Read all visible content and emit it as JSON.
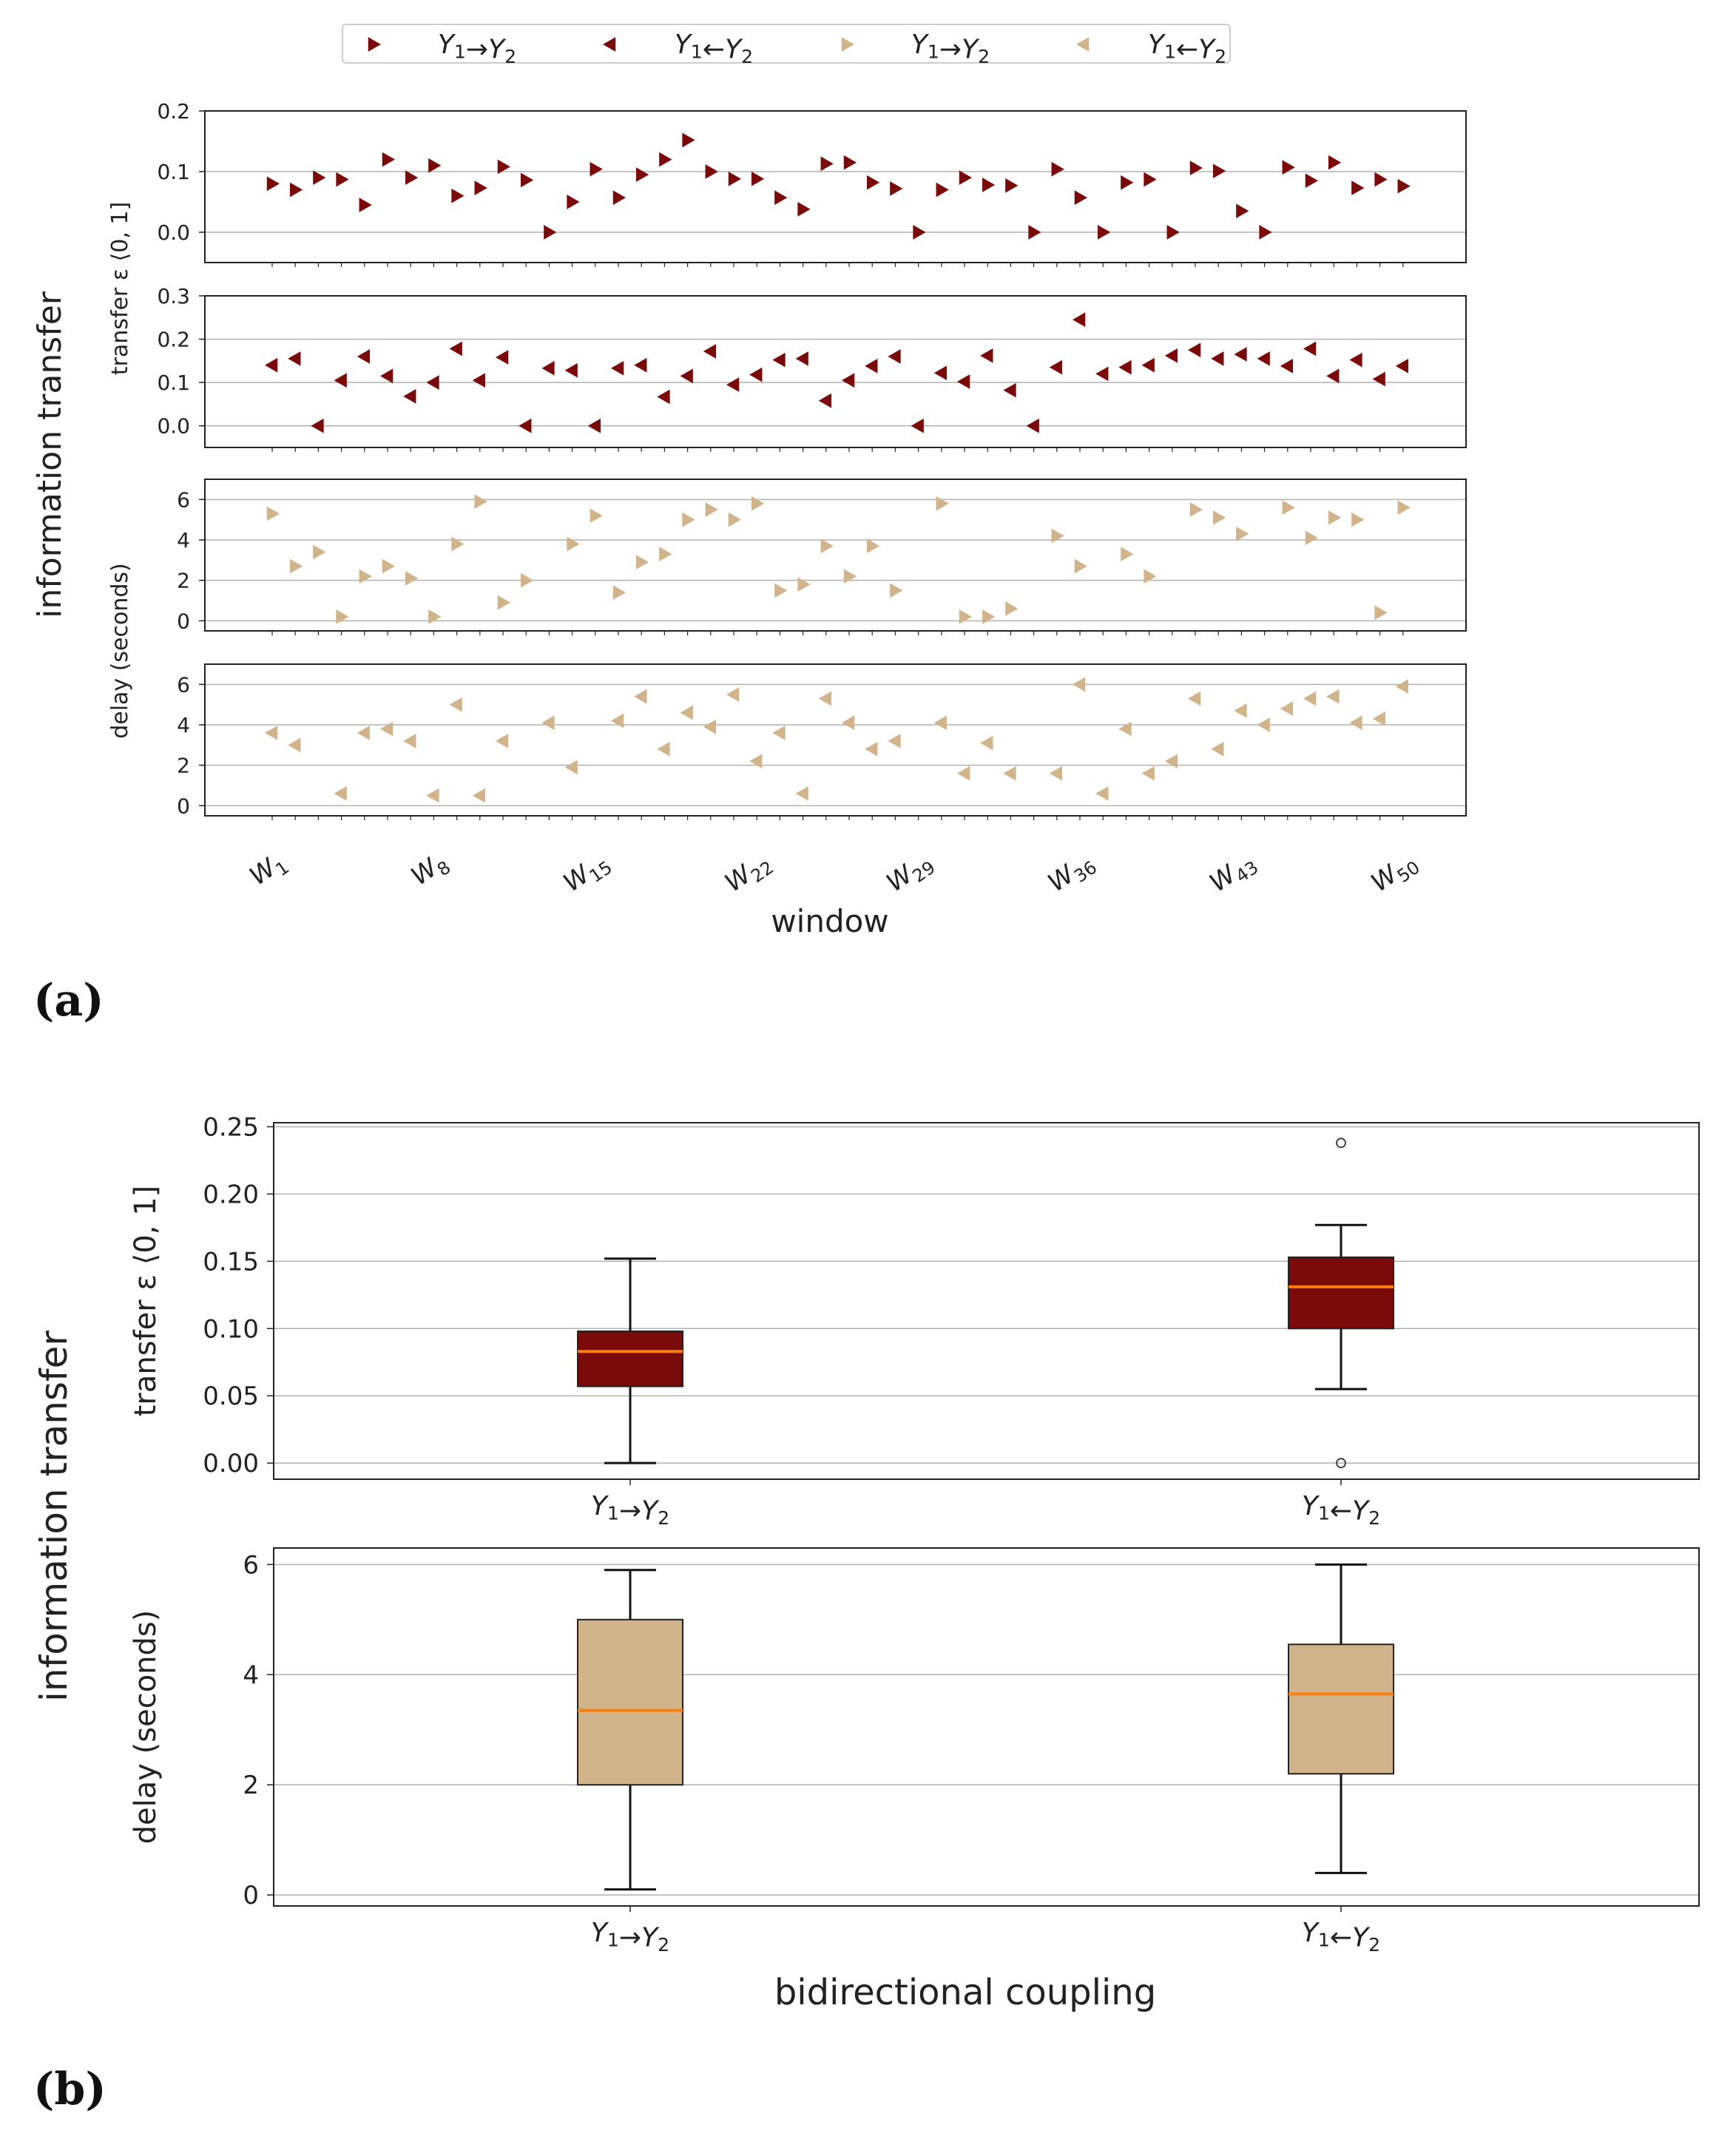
{
  "panel_labels": {
    "a": "(a)",
    "b": "(b)"
  },
  "colors": {
    "dark": "#7b0a0a",
    "light": "#d2b48c",
    "median": "#ff7f0e",
    "grid": "#b0b0b0"
  },
  "chart_data": [
    {
      "id": "a",
      "type": "scatter",
      "legend": {
        "placement": "top-center",
        "entries": [
          {
            "label": "Y₁→Y₂",
            "marker": "triangle-right",
            "color": "#7b0a0a"
          },
          {
            "label": "Y₁←Y₂",
            "marker": "triangle-left",
            "color": "#7b0a0a"
          },
          {
            "label": "Y₁→Y₂",
            "marker": "triangle-right",
            "color": "#d2b48c"
          },
          {
            "label": "Y₁←Y₂",
            "marker": "triangle-left",
            "color": "#d2b48c"
          }
        ]
      },
      "ylabel_group": "information transfer",
      "ylabel_transfer": "transfer ε ⟨0, 1]",
      "ylabel_delay": "delay (seconds)",
      "xlabel": "window",
      "x_tick_labels": [
        {
          "base": "W",
          "sub": "1",
          "index": 1
        },
        {
          "base": "W",
          "sub": "8",
          "index": 8
        },
        {
          "base": "W",
          "sub": "15",
          "index": 15
        },
        {
          "base": "W",
          "sub": "22",
          "index": 22
        },
        {
          "base": "W",
          "sub": "29",
          "index": 29
        },
        {
          "base": "W",
          "sub": "36",
          "index": 36
        },
        {
          "base": "W",
          "sub": "43",
          "index": 43
        },
        {
          "base": "W",
          "sub": "50",
          "index": 50
        }
      ],
      "subplots": [
        {
          "series": "Y₁→Y₂ transfer",
          "marker": "right",
          "color": "dark",
          "ylim": [
            -0.05,
            0.2
          ],
          "yticks": [
            0.0,
            0.1,
            0.2
          ],
          "ytick_labels": [
            "0.0",
            "0.1",
            "0.2"
          ],
          "values": [
            0.08,
            0.07,
            0.09,
            0.087,
            0.045,
            0.12,
            0.09,
            0.11,
            0.06,
            0.073,
            0.108,
            0.086,
            0.0,
            0.05,
            0.104,
            0.057,
            0.095,
            0.12,
            0.152,
            0.1,
            0.088,
            0.088,
            0.057,
            0.038,
            0.113,
            0.115,
            0.082,
            0.072,
            0.0,
            0.07,
            0.09,
            0.078,
            0.077,
            0.0,
            0.104,
            0.057,
            0.0,
            0.082,
            0.087,
            0.0,
            0.106,
            0.101,
            0.035,
            0.0,
            0.107,
            0.085,
            0.115,
            0.073,
            0.087,
            0.076
          ]
        },
        {
          "series": "Y₁←Y₂ transfer",
          "marker": "left",
          "color": "dark",
          "ylim": [
            -0.05,
            0.3
          ],
          "yticks": [
            0.0,
            0.1,
            0.2,
            0.3
          ],
          "ytick_labels": [
            "0.0",
            "0.1",
            "0.2",
            "0.3"
          ],
          "values": [
            0.14,
            0.155,
            0.0,
            0.105,
            0.16,
            0.115,
            0.068,
            0.1,
            0.178,
            0.105,
            0.158,
            0.0,
            0.133,
            0.128,
            0.0,
            0.133,
            0.14,
            0.067,
            0.115,
            0.172,
            0.095,
            0.118,
            0.152,
            0.155,
            0.058,
            0.105,
            0.138,
            0.16,
            0.0,
            0.122,
            0.102,
            0.162,
            0.082,
            0.0,
            0.135,
            0.245,
            0.12,
            0.135,
            0.14,
            0.162,
            0.175,
            0.155,
            0.165,
            0.155,
            0.138,
            0.178,
            0.115,
            0.152,
            0.108,
            0.138
          ]
        },
        {
          "series": "Y₁→Y₂ delay",
          "marker": "right",
          "color": "light",
          "ylim": [
            -0.5,
            7
          ],
          "yticks": [
            0,
            2,
            4,
            6
          ],
          "ytick_labels": [
            "0",
            "2",
            "4",
            "6"
          ],
          "values": [
            5.3,
            2.7,
            3.4,
            0.2,
            2.2,
            2.7,
            2.1,
            0.2,
            3.8,
            5.9,
            0.9,
            2.0,
            null,
            3.8,
            5.2,
            1.4,
            2.9,
            3.3,
            5.0,
            5.5,
            5.0,
            5.8,
            1.5,
            1.8,
            3.7,
            2.2,
            3.7,
            1.5,
            null,
            5.8,
            0.2,
            0.2,
            0.6,
            null,
            4.2,
            2.7,
            null,
            3.3,
            2.2,
            null,
            5.5,
            5.1,
            4.3,
            null,
            5.6,
            4.1,
            5.1,
            5.0,
            0.4,
            5.6
          ]
        },
        {
          "series": "Y₁←Y₂ delay",
          "marker": "left",
          "color": "light",
          "ylim": [
            -0.5,
            7
          ],
          "yticks": [
            0,
            2,
            4,
            6
          ],
          "ytick_labels": [
            "0",
            "2",
            "4",
            "6"
          ],
          "values": [
            3.6,
            3.0,
            null,
            0.6,
            3.6,
            3.8,
            3.2,
            0.5,
            5.0,
            0.5,
            3.2,
            null,
            4.1,
            1.9,
            null,
            4.2,
            5.4,
            2.8,
            4.6,
            3.9,
            5.5,
            2.2,
            3.6,
            0.6,
            5.3,
            4.1,
            2.8,
            3.2,
            null,
            4.1,
            1.6,
            3.1,
            1.6,
            null,
            1.6,
            6.0,
            0.6,
            3.8,
            1.6,
            2.2,
            5.3,
            2.8,
            4.7,
            4.0,
            4.8,
            5.3,
            5.4,
            4.1,
            4.3,
            5.9
          ]
        }
      ]
    },
    {
      "id": "b",
      "type": "box",
      "ylabel_group": "information transfer",
      "xlabel": "bidirectional coupling",
      "categories": [
        "Y₁→Y₂",
        "Y₁←Y₂"
      ],
      "subplots": [
        {
          "ylabel": "transfer ε ⟨0, 1]",
          "color": "dark",
          "ylim": [
            -0.012,
            0.253
          ],
          "yticks": [
            0.0,
            0.05,
            0.1,
            0.15,
            0.2,
            0.25
          ],
          "ytick_labels": [
            "0.00",
            "0.05",
            "0.10",
            "0.15",
            "0.20",
            "0.25"
          ],
          "boxes": [
            {
              "whisker_low": 0.0,
              "q1": 0.057,
              "median": 0.083,
              "q3": 0.098,
              "whisker_high": 0.152,
              "fliers": []
            },
            {
              "whisker_low": 0.055,
              "q1": 0.1,
              "median": 0.131,
              "q3": 0.153,
              "whisker_high": 0.177,
              "fliers": [
                0.238,
                0.0
              ]
            }
          ]
        },
        {
          "ylabel": "delay (seconds)",
          "color": "light",
          "ylim": [
            -0.2,
            6.3
          ],
          "yticks": [
            0,
            2,
            4,
            6
          ],
          "ytick_labels": [
            "0",
            "2",
            "4",
            "6"
          ],
          "boxes": [
            {
              "whisker_low": 0.1,
              "q1": 2.0,
              "median": 3.35,
              "q3": 5.0,
              "whisker_high": 5.9,
              "fliers": []
            },
            {
              "whisker_low": 0.4,
              "q1": 2.2,
              "median": 3.65,
              "q3": 4.55,
              "whisker_high": 6.0,
              "fliers": []
            }
          ]
        }
      ]
    }
  ]
}
